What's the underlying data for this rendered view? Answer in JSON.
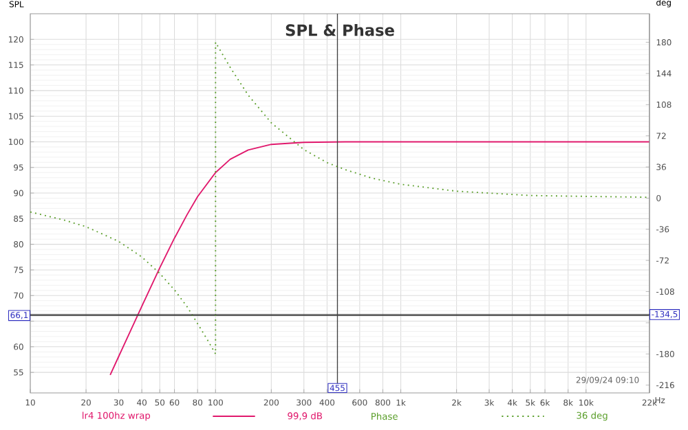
{
  "chart_data": {
    "type": "line",
    "title": "SPL & Phase",
    "ylabel": "SPL",
    "y2label": "deg",
    "annotations": [
      "99,9 dB",
      "36 deg",
      "29/09/24 09:10"
    ],
    "xlim": [
      10,
      22000
    ],
    "log": "x",
    "xticks": [
      10,
      20,
      30,
      40,
      50,
      60,
      80,
      100,
      200,
      300,
      400,
      600,
      800,
      {
        "value": 1000,
        "label": "1k"
      },
      {
        "value": 2000,
        "label": "2k"
      },
      {
        "value": 3000,
        "label": "3k"
      },
      {
        "value": 4000,
        "label": "4k"
      },
      {
        "value": 5000,
        "label": "5k"
      },
      {
        "value": 6000,
        "label": "6k"
      },
      {
        "value": 8000,
        "label": "8k"
      },
      {
        "value": 10000,
        "label": "10k"
      },
      {
        "value": 22000,
        "label": "22k"
      }
    ],
    "xlabel": "Hz",
    "ylim": [
      51,
      125
    ],
    "yticks": [
      55,
      60,
      {
        "value": 65,
        "label": null
      },
      70,
      75,
      80,
      85,
      90,
      95,
      100,
      105,
      110,
      115,
      120
    ],
    "y2lim": [
      -225,
      213
    ],
    "y2ticks": [
      -216,
      -180,
      {
        "value": -144,
        "label": null
      },
      -108,
      -72,
      -36,
      0,
      36,
      72,
      108,
      144,
      180
    ],
    "grid": true,
    "legend": "bottom",
    "ref_lines": [
      {
        "axis": "y",
        "value": 66.1,
        "label": "66,1",
        "color": "#404040"
      },
      {
        "axis": "y2",
        "value": -134.5,
        "label": "-134,5",
        "color": "#404040"
      },
      {
        "axis": "x",
        "value": 455,
        "label": "455",
        "color": "#404040"
      }
    ],
    "series": [
      {
        "name": "lr4 100hz wrap",
        "color": "#e0186c",
        "line_style": "solid",
        "x": [
          27,
          30,
          40,
          50,
          60,
          70,
          80,
          100,
          120,
          150,
          200,
          300,
          500,
          1000,
          2000,
          5000,
          10000,
          22000
        ],
        "values": [
          54.5,
          58.1,
          67.9,
          75.4,
          81.2,
          85.7,
          89.3,
          94.0,
          96.6,
          98.4,
          99.5,
          99.9,
          100,
          100,
          100,
          100,
          100,
          100
        ]
      },
      {
        "name": "Phase",
        "color": "#5a9e2a",
        "line_style": "dotted",
        "axis": "y2",
        "x": [
          10,
          15,
          20,
          30,
          40,
          50,
          60,
          70,
          80,
          90,
          100,
          100,
          120,
          150,
          200,
          300,
          400,
          500,
          700,
          1000,
          2000,
          5000,
          10000,
          22000
        ],
        "values": [
          -16,
          -25,
          -33,
          -50,
          -68,
          -87,
          -106,
          -125,
          -145,
          -163,
          -180,
          180,
          151,
          119,
          87,
          56,
          41,
          33,
          23,
          16,
          8,
          3,
          2,
          1
        ]
      }
    ]
  }
}
